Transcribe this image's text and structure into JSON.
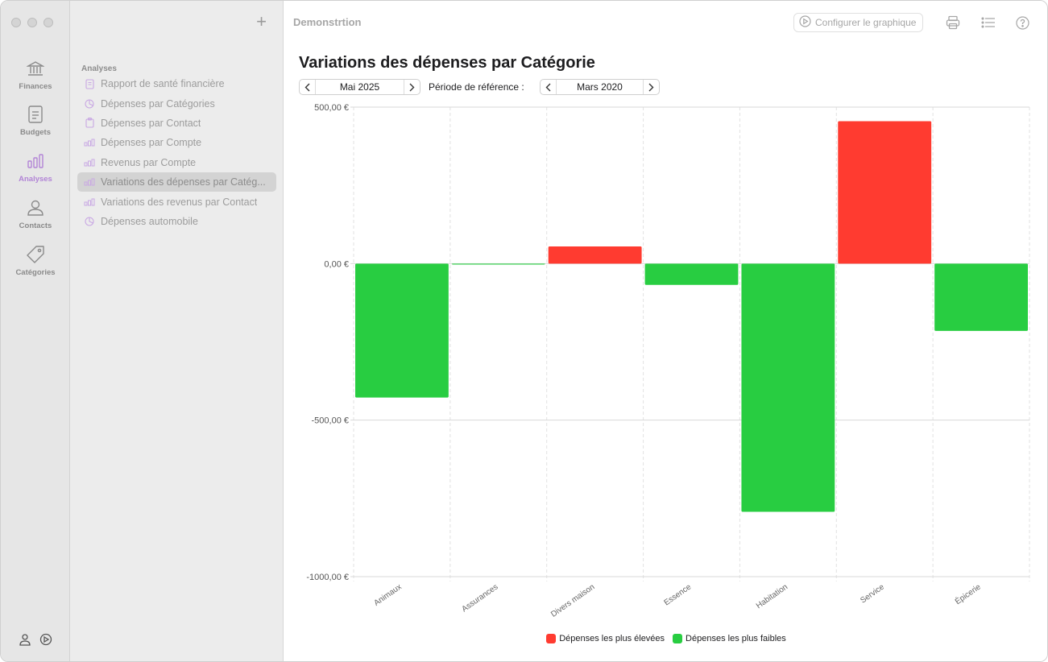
{
  "rail": {
    "items": [
      {
        "label": "Finances",
        "icon": "bank-icon"
      },
      {
        "label": "Budgets",
        "icon": "document-icon"
      },
      {
        "label": "Analyses",
        "icon": "bar-chart-icon"
      },
      {
        "label": "Contacts",
        "icon": "person-icon"
      },
      {
        "label": "Catégories",
        "icon": "tag-icon"
      }
    ]
  },
  "sidebar": {
    "section_title": "Analyses",
    "items": [
      {
        "label": "Rapport de santé financière",
        "icon": "report-icon"
      },
      {
        "label": "Dépenses par Catégories",
        "icon": "pie-icon"
      },
      {
        "label": "Dépenses par Contact",
        "icon": "clipboard-icon"
      },
      {
        "label": "Dépenses par Compte",
        "icon": "bars-icon"
      },
      {
        "label": "Revenus par Compte",
        "icon": "bars-icon"
      },
      {
        "label": "Variations des dépenses par Catég...",
        "icon": "bars-icon"
      },
      {
        "label": "Variations des revenus par Contact",
        "icon": "bars-icon"
      },
      {
        "label": "Dépenses automobile",
        "icon": "pie-icon"
      }
    ]
  },
  "toolbar": {
    "title": "Demonstrtion",
    "configure_label": "Configurer le graphique"
  },
  "report": {
    "title": "Variations des dépenses par Catégorie",
    "period": "Mai 2025",
    "reference_label": "Période de référence :",
    "reference_period": "Mars 2020"
  },
  "colors": {
    "increase": "#ff3b30",
    "decrease": "#28cd41",
    "accent": "#b284d6"
  },
  "chart_data": {
    "type": "bar",
    "categories": [
      "Animaux",
      "Assurances",
      "Divers maison",
      "Essence",
      "Habitation",
      "Service",
      "Épicerie"
    ],
    "values": [
      -428,
      -3,
      55,
      -68,
      -793,
      455,
      -215
    ],
    "ylim": [
      -1000,
      500
    ],
    "yticks": [
      500,
      0,
      -500,
      -1000
    ],
    "ytick_labels": [
      "500,00 €",
      "0,00 €",
      "-500,00 €",
      "-1000,00 €"
    ],
    "legend": [
      "Dépenses les plus élevées",
      "Dépenses les plus faibles"
    ],
    "legend_position": "bottom"
  }
}
